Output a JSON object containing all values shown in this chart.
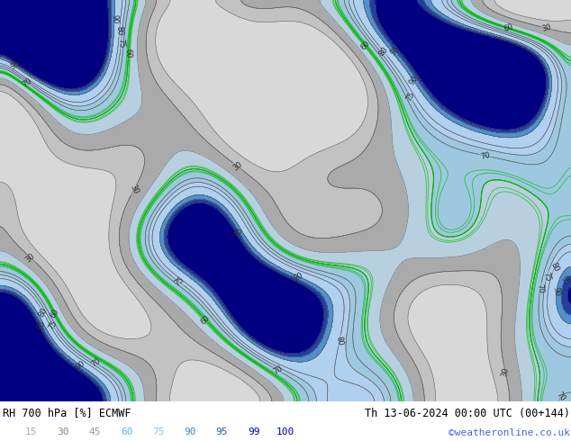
{
  "title_left": "RH 700 hPa [%] ECMWF",
  "title_right": "Th 13-06-2024 00:00 UTC (00+144)",
  "credit": "©weatheronline.co.uk",
  "colorbar_levels": [
    15,
    30,
    45,
    60,
    75,
    90,
    95,
    99,
    100
  ],
  "colorbar_label_colors": [
    "#aaaaaa",
    "#888888",
    "#999999",
    "#5bb8e8",
    "#7ec8e8",
    "#4488cc",
    "#2255bb",
    "#0000cc",
    "#0000aa"
  ],
  "fill_levels": [
    0,
    15,
    30,
    45,
    60,
    75,
    90,
    95,
    99,
    101
  ],
  "fill_colors": [
    "#d8d8d8",
    "#c2c2c2",
    "#aaaaaa",
    "#b8cfe0",
    "#9ec8e0",
    "#b0d0f0",
    "#5090d0",
    "#2040a0",
    "#000080"
  ],
  "contour_levels": [
    15,
    30,
    45,
    60,
    70,
    75,
    80,
    90,
    95,
    99
  ],
  "label_levels": [
    30,
    60,
    70,
    75,
    80,
    90,
    95
  ],
  "contour_color": "#606060",
  "contour_lw": 0.4,
  "green_line_color": "#00bb00",
  "green_line_lw": 0.9,
  "green_levels": [
    60
  ],
  "bg_color": "#ffffff",
  "title_color": "#000000",
  "credit_color": "#4169e1",
  "right_title_color": "#000000",
  "label_fontsize": 6,
  "figsize": [
    6.34,
    4.9
  ],
  "dpi": 100
}
